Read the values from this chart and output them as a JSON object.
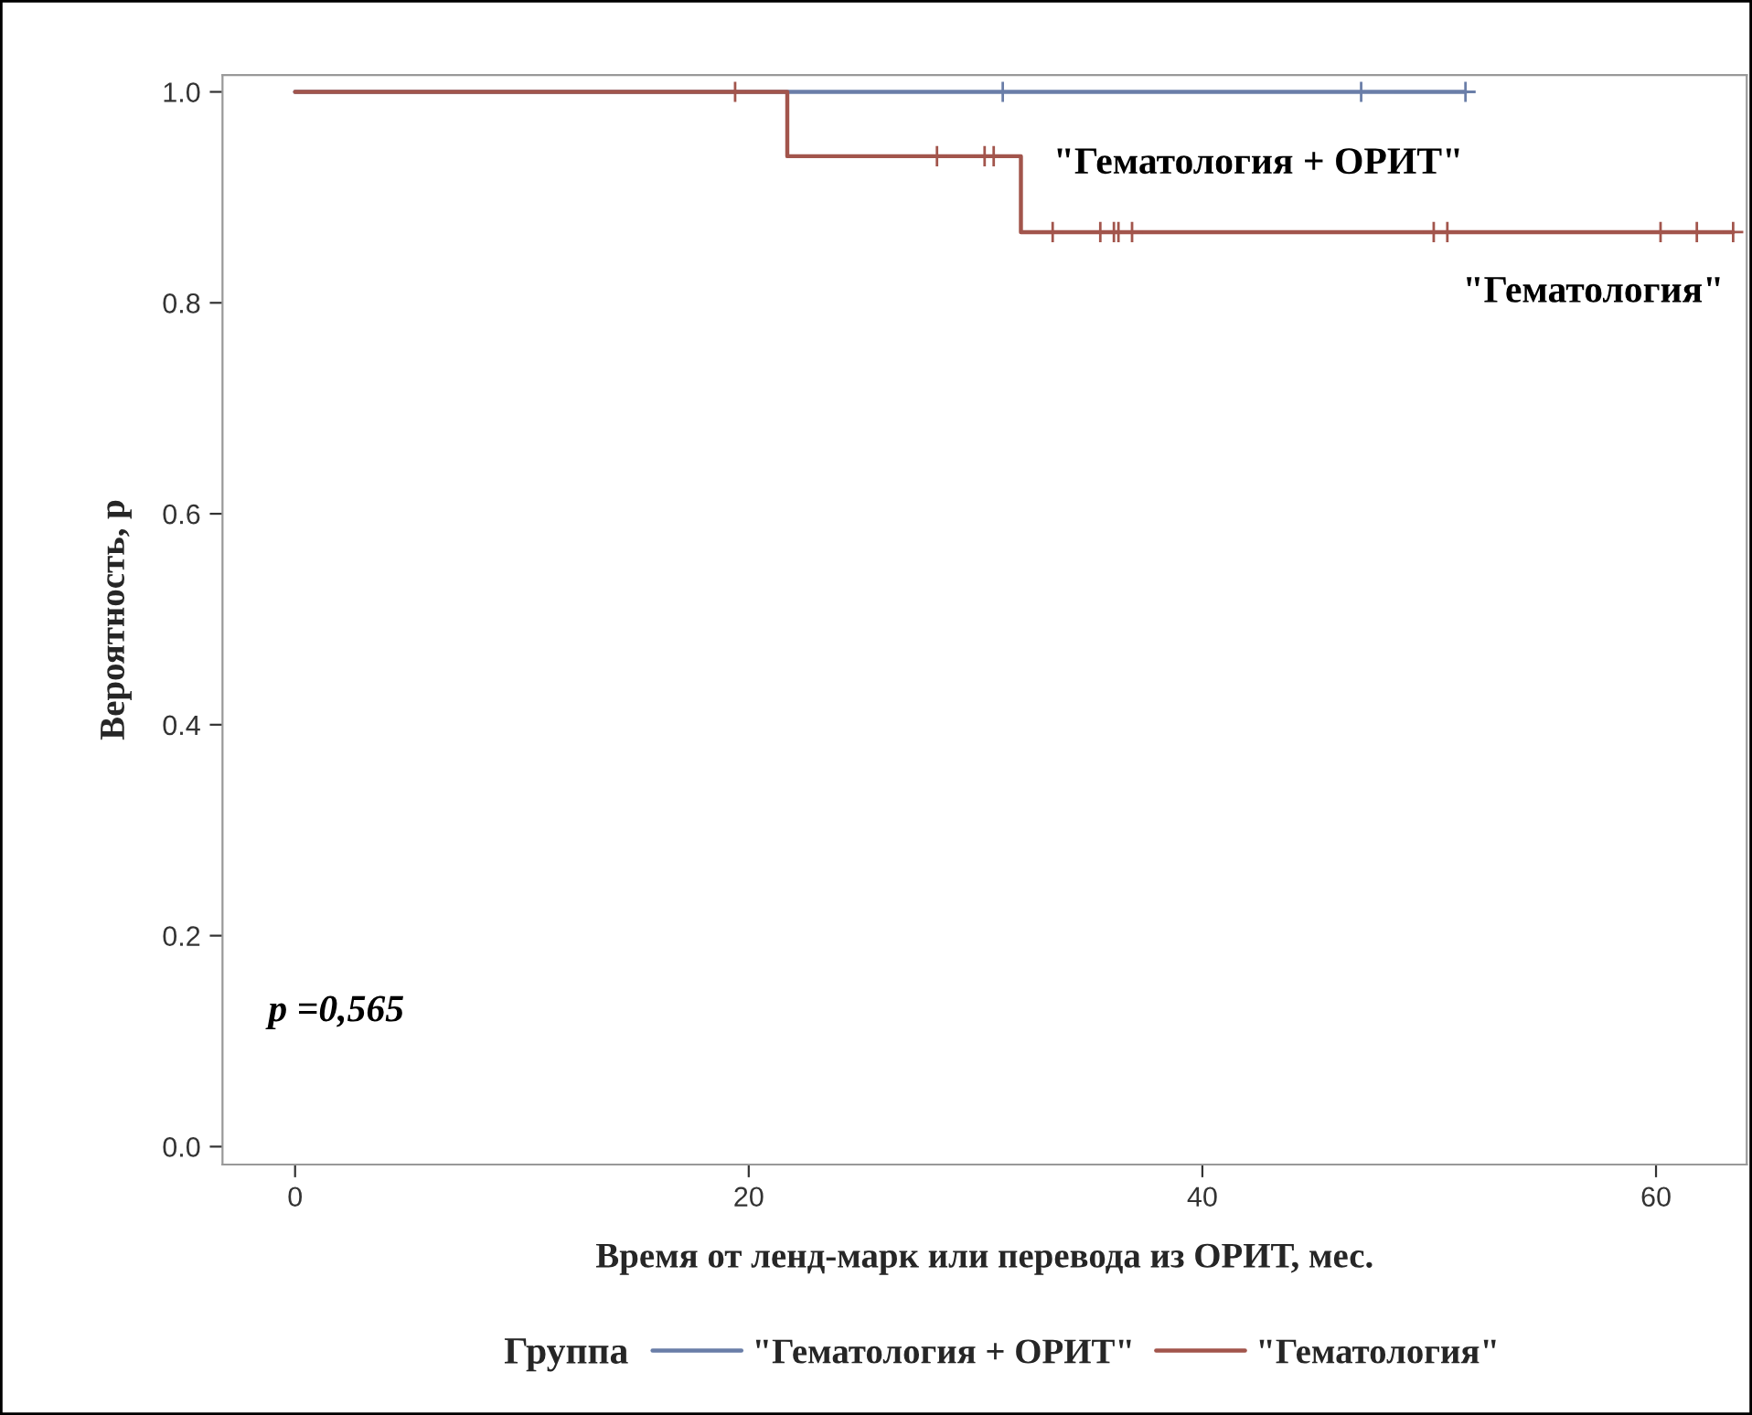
{
  "chart_data": {
    "type": "step",
    "xlabel": "Время от ленд-марк или перевода из ОРИТ, мес.",
    "ylabel": "Вероятность, p",
    "legend_title": "Группа",
    "legend": "bottom",
    "grid": false,
    "xlim": [
      -3.2,
      64
    ],
    "xticks": [
      0,
      20,
      40,
      60
    ],
    "ylim": [
      -0.017,
      1.016
    ],
    "yticks": [
      {
        "value": 0,
        "label": "0.0"
      },
      {
        "value": 0.2,
        "label": "0.2"
      },
      {
        "value": 0.4,
        "label": "0.4"
      },
      {
        "value": 0.6,
        "label": "0.6"
      },
      {
        "value": 0.8,
        "label": "0.8"
      },
      {
        "value": 1.0,
        "label": "1.0"
      }
    ],
    "series": [
      {
        "name": "\"Гематология + ОРИТ\"",
        "color": "#6a7ea8",
        "x": [
          0,
          51.6
        ],
        "values": [
          1,
          1
        ]
      },
      {
        "name": "\"Гематология\"",
        "color": "#a2554c",
        "x": [
          0,
          21.7,
          32.0,
          63.4
        ],
        "values": [
          1,
          0.939,
          0.867,
          0.867
        ]
      },
      {
        "type": "scatter",
        "marker": "cross",
        "color": "#6a7ea8",
        "x": [
          31.2,
          47.0,
          51.6
        ],
        "values": [
          1,
          1,
          1
        ]
      },
      {
        "type": "scatter",
        "marker": "cross",
        "color": "#a2554c",
        "x": [
          19.4,
          28.3,
          30.4,
          30.8,
          33.4,
          35.5,
          36.1,
          36.3,
          36.9,
          50.2,
          50.8,
          60.2,
          61.8,
          63.4
        ],
        "values": [
          1,
          0.939,
          0.939,
          0.939,
          0.867,
          0.867,
          0.867,
          0.867,
          0.867,
          0.867,
          0.867,
          0.867,
          0.867,
          0.867
        ]
      }
    ],
    "annotations": [
      "\"Гематология + ОРИТ\"",
      "\"Гематология\"",
      "p =0,565"
    ]
  }
}
